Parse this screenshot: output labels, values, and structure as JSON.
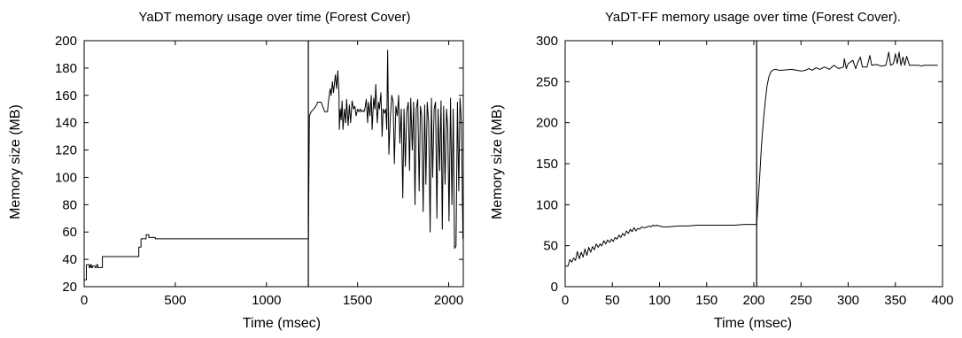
{
  "chart_data": [
    {
      "type": "line",
      "title": "YaDT memory usage over time (Forest Cover)",
      "xlabel": "Time (msec)",
      "ylabel": "Memory size (MB)",
      "xlim": [
        0,
        2080
      ],
      "ylim": [
        20,
        200
      ],
      "xticks": [
        "0",
        "500",
        "1000",
        "1500",
        "2000"
      ],
      "yticks": [
        "20",
        "40",
        "60",
        "80",
        "100",
        "120",
        "140",
        "160",
        "180",
        "200"
      ],
      "xtick_values": [
        0,
        500,
        1000,
        1500,
        2000
      ],
      "ytick_values": [
        20,
        40,
        60,
        80,
        100,
        120,
        140,
        160,
        180,
        200
      ],
      "grid": false,
      "legend": "none",
      "series": [
        {
          "x": [
            0,
            12,
            12,
            28,
            28,
            34,
            34,
            40,
            40,
            45,
            45,
            60,
            60,
            68,
            68,
            75,
            75,
            100,
            100,
            300,
            300,
            312,
            312,
            340,
            340,
            355,
            355,
            390,
            390,
            400,
            400,
            1230,
            1230,
            1236,
            1245,
            1260,
            1275,
            1280,
            1300,
            1320,
            1335,
            1340,
            1350,
            1355,
            1362,
            1368,
            1378,
            1385,
            1392,
            1398,
            1400,
            1405,
            1410,
            1415,
            1420,
            1428,
            1435,
            1440,
            1448,
            1455,
            1462,
            1470,
            1478,
            1485,
            1492,
            1500,
            1508,
            1515,
            1520,
            1528,
            1535,
            1540,
            1548,
            1555,
            1560,
            1568,
            1575,
            1580,
            1588,
            1595,
            1600,
            1608,
            1615,
            1620,
            1628,
            1635,
            1640,
            1648,
            1655,
            1660,
            1665,
            1672,
            1680,
            1688,
            1695,
            1702,
            1710,
            1718,
            1725,
            1732,
            1740,
            1748,
            1755,
            1762,
            1770,
            1778,
            1785,
            1792,
            1800,
            1808,
            1815,
            1822,
            1830,
            1838,
            1845,
            1852,
            1860,
            1868,
            1875,
            1882,
            1890,
            1898,
            1905,
            1912,
            1920,
            1928,
            1935,
            1942,
            1950,
            1958,
            1965,
            1972,
            1980,
            1988,
            1995,
            2002,
            2010,
            2018,
            2025,
            2032,
            2040,
            2048,
            2055,
            2062,
            2070,
            2078
          ],
          "y": [
            25,
            25,
            36,
            36,
            34,
            34,
            36,
            36,
            34,
            34,
            35,
            35,
            34,
            34,
            36,
            36,
            34,
            34,
            42,
            42,
            49,
            49,
            55,
            55,
            58,
            58,
            56,
            56,
            55,
            55,
            55,
            55,
            55,
            145,
            148,
            150,
            153,
            155,
            155,
            148,
            148,
            155,
            165,
            160,
            170,
            162,
            175,
            165,
            178,
            160,
            135,
            150,
            142,
            156,
            135,
            150,
            140,
            157,
            138,
            153,
            140,
            156,
            150,
            152,
            145,
            150,
            148,
            150,
            148,
            149,
            148,
            150,
            157,
            140,
            155,
            145,
            160,
            135,
            158,
            150,
            168,
            140,
            155,
            150,
            162,
            130,
            150,
            147,
            150,
            135,
            193,
            117,
            145,
            160,
            155,
            110,
            152,
            145,
            160,
            125,
            150,
            85,
            150,
            108,
            148,
            155,
            105,
            158,
            120,
            155,
            80,
            150,
            157,
            90,
            152,
            145,
            75,
            153,
            95,
            155,
            140,
            60,
            158,
            100,
            150,
            155,
            70,
            150,
            105,
            156,
            62,
            152,
            95,
            150,
            135,
            68,
            158,
            80,
            150,
            48,
            50,
            155,
            90,
            158,
            140,
            55
          ]
        }
      ],
      "vline_x": 1230
    },
    {
      "type": "line",
      "title": "YaDT-FF memory usage over time (Forest Cover).",
      "xlabel": "Time (msec)",
      "ylabel": "Memory size (MB)",
      "xlim": [
        0,
        400
      ],
      "ylim": [
        0,
        300
      ],
      "xticks": [
        "0",
        "50",
        "100",
        "150",
        "200",
        "250",
        "300",
        "350",
        "400"
      ],
      "yticks": [
        "0",
        "50",
        "100",
        "150",
        "200",
        "250",
        "300"
      ],
      "xtick_values": [
        0,
        50,
        100,
        150,
        200,
        250,
        300,
        350,
        400
      ],
      "ytick_values": [
        0,
        50,
        100,
        150,
        200,
        250,
        300
      ],
      "grid": false,
      "legend": "none",
      "series": [
        {
          "x": [
            0,
            3,
            5,
            7,
            9,
            11,
            13,
            15,
            17,
            19,
            21,
            23,
            25,
            27,
            29,
            31,
            33,
            35,
            37,
            39,
            41,
            43,
            45,
            47,
            49,
            51,
            53,
            55,
            57,
            59,
            61,
            63,
            65,
            67,
            69,
            71,
            73,
            75,
            77,
            79,
            81,
            83,
            85,
            87,
            89,
            91,
            93,
            95,
            97,
            99,
            101,
            103,
            105,
            110,
            120,
            130,
            140,
            150,
            160,
            170,
            180,
            190,
            200,
            203,
            204,
            206,
            208,
            210,
            212,
            214,
            216,
            218,
            220,
            222,
            224,
            226,
            230,
            240,
            250,
            255,
            258,
            262,
            266,
            270,
            275,
            280,
            285,
            290,
            295,
            296,
            298,
            300,
            305,
            308,
            310,
            313,
            315,
            320,
            323,
            325,
            330,
            335,
            340,
            343,
            345,
            348,
            350,
            352,
            354,
            356,
            358,
            360,
            362,
            365,
            370,
            375,
            378,
            380,
            385,
            390,
            395
          ],
          "y": [
            25,
            25,
            33,
            30,
            35,
            32,
            43,
            34,
            42,
            36,
            46,
            38,
            48,
            42,
            49,
            45,
            52,
            48,
            52,
            50,
            56,
            52,
            57,
            54,
            58,
            55,
            60,
            58,
            63,
            60,
            65,
            62,
            68,
            65,
            70,
            67,
            72,
            68,
            71,
            70,
            73,
            72,
            72,
            73,
            74,
            73,
            75,
            74,
            75,
            74,
            74,
            73,
            73,
            73,
            74,
            74,
            75,
            75,
            75,
            75,
            75,
            76,
            76,
            76,
            95,
            130,
            170,
            200,
            225,
            245,
            256,
            262,
            264,
            265,
            265,
            264,
            264,
            265,
            263,
            264,
            266,
            264,
            267,
            265,
            268,
            265,
            270,
            266,
            268,
            278,
            266,
            272,
            276,
            266,
            273,
            280,
            268,
            268,
            282,
            270,
            271,
            269,
            270,
            286,
            270,
            272,
            284,
            272,
            286,
            270,
            280,
            270,
            281,
            270,
            270,
            270,
            269,
            270,
            270,
            270,
            270
          ]
        }
      ],
      "vline_x": 203
    }
  ]
}
